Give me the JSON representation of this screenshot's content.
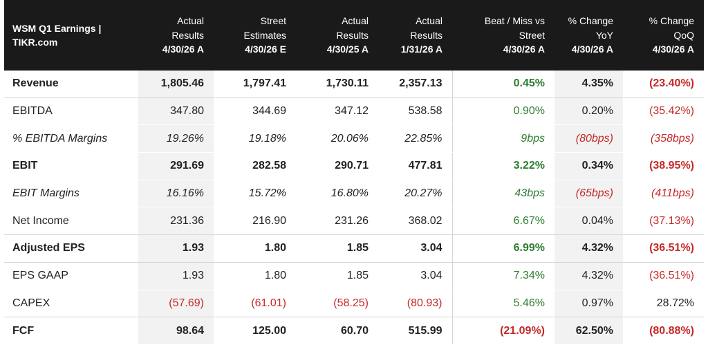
{
  "colors": {
    "header_bg": "#1a1a1a",
    "positive": "#2e7d32",
    "negative": "#c62828",
    "shade": "#f2f2f2"
  },
  "header": {
    "title_line1": "WSM Q1 Earnings |",
    "title_line2": "TIKR.com",
    "columns": [
      {
        "l1": "Actual",
        "l2": "Results",
        "date": "4/30/26 A"
      },
      {
        "l1": "Street",
        "l2": "Estimates",
        "date": "4/30/26 E"
      },
      {
        "l1": "Actual",
        "l2": "Results",
        "date": "4/30/25 A"
      },
      {
        "l1": "Actual",
        "l2": "Results",
        "date": "1/31/26 A"
      },
      {
        "l1": "Beat / Miss vs",
        "l2": "Street",
        "date": "4/30/26 A"
      },
      {
        "l1": "% Change",
        "l2": "YoY",
        "date": "4/30/26 A"
      },
      {
        "l1": "% Change",
        "l2": "QoQ",
        "date": "4/30/26 A"
      }
    ]
  },
  "rows": [
    {
      "label": "Revenue",
      "style": "bold",
      "cells": [
        {
          "v": "1,805.46",
          "c": "neu"
        },
        {
          "v": "1,797.41",
          "c": "neu"
        },
        {
          "v": "1,730.11",
          "c": "neu"
        },
        {
          "v": "2,357.13",
          "c": "neu"
        },
        {
          "v": "0.45%",
          "c": "pos"
        },
        {
          "v": "4.35%",
          "c": "neu"
        },
        {
          "v": "(23.40%)",
          "c": "neg"
        }
      ]
    },
    {
      "label": "EBITDA",
      "style": "normal",
      "cells": [
        {
          "v": "347.80",
          "c": "neu"
        },
        {
          "v": "344.69",
          "c": "neu"
        },
        {
          "v": "347.12",
          "c": "neu"
        },
        {
          "v": "538.58",
          "c": "neu"
        },
        {
          "v": "0.90%",
          "c": "pos"
        },
        {
          "v": "0.20%",
          "c": "neu"
        },
        {
          "v": "(35.42%)",
          "c": "neg"
        }
      ]
    },
    {
      "label": "% EBITDA Margins",
      "style": "italic",
      "cells": [
        {
          "v": "19.26%",
          "c": "neu"
        },
        {
          "v": "19.18%",
          "c": "neu"
        },
        {
          "v": "20.06%",
          "c": "neu"
        },
        {
          "v": "22.85%",
          "c": "neu"
        },
        {
          "v": "9bps",
          "c": "pos"
        },
        {
          "v": "(80bps)",
          "c": "neg"
        },
        {
          "v": "(358bps)",
          "c": "neg"
        }
      ]
    },
    {
      "label": "EBIT",
      "style": "bold",
      "cells": [
        {
          "v": "291.69",
          "c": "neu"
        },
        {
          "v": "282.58",
          "c": "neu"
        },
        {
          "v": "290.71",
          "c": "neu"
        },
        {
          "v": "477.81",
          "c": "neu"
        },
        {
          "v": "3.22%",
          "c": "pos"
        },
        {
          "v": "0.34%",
          "c": "neu"
        },
        {
          "v": "(38.95%)",
          "c": "neg"
        }
      ]
    },
    {
      "label": "EBIT Margins",
      "style": "italic",
      "cells": [
        {
          "v": "16.16%",
          "c": "neu"
        },
        {
          "v": "15.72%",
          "c": "neu"
        },
        {
          "v": "16.80%",
          "c": "neu"
        },
        {
          "v": "20.27%",
          "c": "neu"
        },
        {
          "v": "43bps",
          "c": "pos"
        },
        {
          "v": "(65bps)",
          "c": "neg"
        },
        {
          "v": "(411bps)",
          "c": "neg"
        }
      ]
    },
    {
      "label": "Net Income",
      "style": "normal",
      "cells": [
        {
          "v": "231.36",
          "c": "neu"
        },
        {
          "v": "216.90",
          "c": "neu"
        },
        {
          "v": "231.26",
          "c": "neu"
        },
        {
          "v": "368.02",
          "c": "neu"
        },
        {
          "v": "6.67%",
          "c": "pos"
        },
        {
          "v": "0.04%",
          "c": "neu"
        },
        {
          "v": "(37.13%)",
          "c": "neg"
        }
      ]
    },
    {
      "label": "Adjusted EPS",
      "style": "bold",
      "cells": [
        {
          "v": "1.93",
          "c": "neu"
        },
        {
          "v": "1.80",
          "c": "neu"
        },
        {
          "v": "1.85",
          "c": "neu"
        },
        {
          "v": "3.04",
          "c": "neu"
        },
        {
          "v": "6.99%",
          "c": "pos"
        },
        {
          "v": "4.32%",
          "c": "neu"
        },
        {
          "v": "(36.51%)",
          "c": "neg"
        }
      ]
    },
    {
      "label": "EPS GAAP",
      "style": "normal",
      "cells": [
        {
          "v": "1.93",
          "c": "neu"
        },
        {
          "v": "1.80",
          "c": "neu"
        },
        {
          "v": "1.85",
          "c": "neu"
        },
        {
          "v": "3.04",
          "c": "neu"
        },
        {
          "v": "7.34%",
          "c": "pos"
        },
        {
          "v": "4.32%",
          "c": "neu"
        },
        {
          "v": "(36.51%)",
          "c": "neg"
        }
      ]
    },
    {
      "label": "CAPEX",
      "style": "normal",
      "cells": [
        {
          "v": "(57.69)",
          "c": "neg"
        },
        {
          "v": "(61.01)",
          "c": "neg"
        },
        {
          "v": "(58.25)",
          "c": "neg"
        },
        {
          "v": "(80.93)",
          "c": "neg"
        },
        {
          "v": "5.46%",
          "c": "pos"
        },
        {
          "v": "0.97%",
          "c": "neu"
        },
        {
          "v": "28.72%",
          "c": "neu"
        }
      ]
    },
    {
      "label": "FCF",
      "style": "bold",
      "cells": [
        {
          "v": "98.64",
          "c": "neu"
        },
        {
          "v": "125.00",
          "c": "neu"
        },
        {
          "v": "60.70",
          "c": "neu"
        },
        {
          "v": "515.99",
          "c": "neu"
        },
        {
          "v": "(21.09%)",
          "c": "neg"
        },
        {
          "v": "62.50%",
          "c": "neu"
        },
        {
          "v": "(80.88%)",
          "c": "neg"
        }
      ]
    }
  ]
}
